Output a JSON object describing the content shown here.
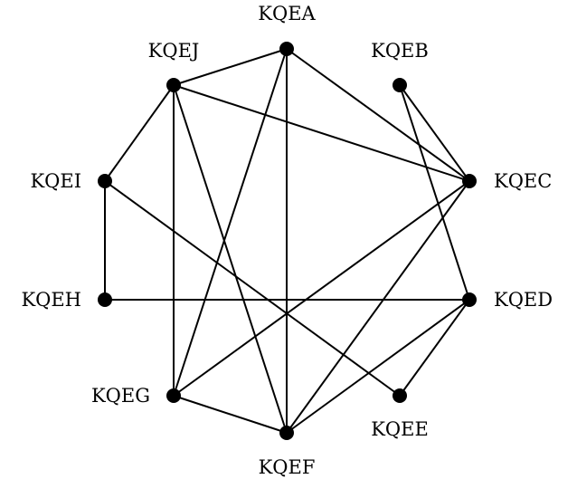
{
  "graph": {
    "nodes": [
      {
        "id": "KQEA",
        "label": "KQEA"
      },
      {
        "id": "KQEB",
        "label": "KQEB"
      },
      {
        "id": "KQEC",
        "label": "KQEC"
      },
      {
        "id": "KQED",
        "label": "KQED"
      },
      {
        "id": "KQEE",
        "label": "KQEE"
      },
      {
        "id": "KQEF",
        "label": "KQEF"
      },
      {
        "id": "KQEG",
        "label": "KQEG"
      },
      {
        "id": "KQEH",
        "label": "KQEH"
      },
      {
        "id": "KQEI",
        "label": "KQEI"
      },
      {
        "id": "KQEJ",
        "label": "KQEJ"
      }
    ],
    "edges": [
      [
        "KQEA",
        "KQEJ"
      ],
      [
        "KQEA",
        "KQEC"
      ],
      [
        "KQEA",
        "KQEF"
      ],
      [
        "KQEA",
        "KQEG"
      ],
      [
        "KQEJ",
        "KQEI"
      ],
      [
        "KQEJ",
        "KQEC"
      ],
      [
        "KQEJ",
        "KQEG"
      ],
      [
        "KQEJ",
        "KQEF"
      ],
      [
        "KQEB",
        "KQEC"
      ],
      [
        "KQEB",
        "KQED"
      ],
      [
        "KQEC",
        "KQEG"
      ],
      [
        "KQEC",
        "KQEF"
      ],
      [
        "KQEI",
        "KQEH"
      ],
      [
        "KQEI",
        "KQEE"
      ],
      [
        "KQEH",
        "KQED"
      ],
      [
        "KQED",
        "KQEE"
      ],
      [
        "KQED",
        "KQEF"
      ],
      [
        "KQEG",
        "KQEF"
      ]
    ]
  }
}
